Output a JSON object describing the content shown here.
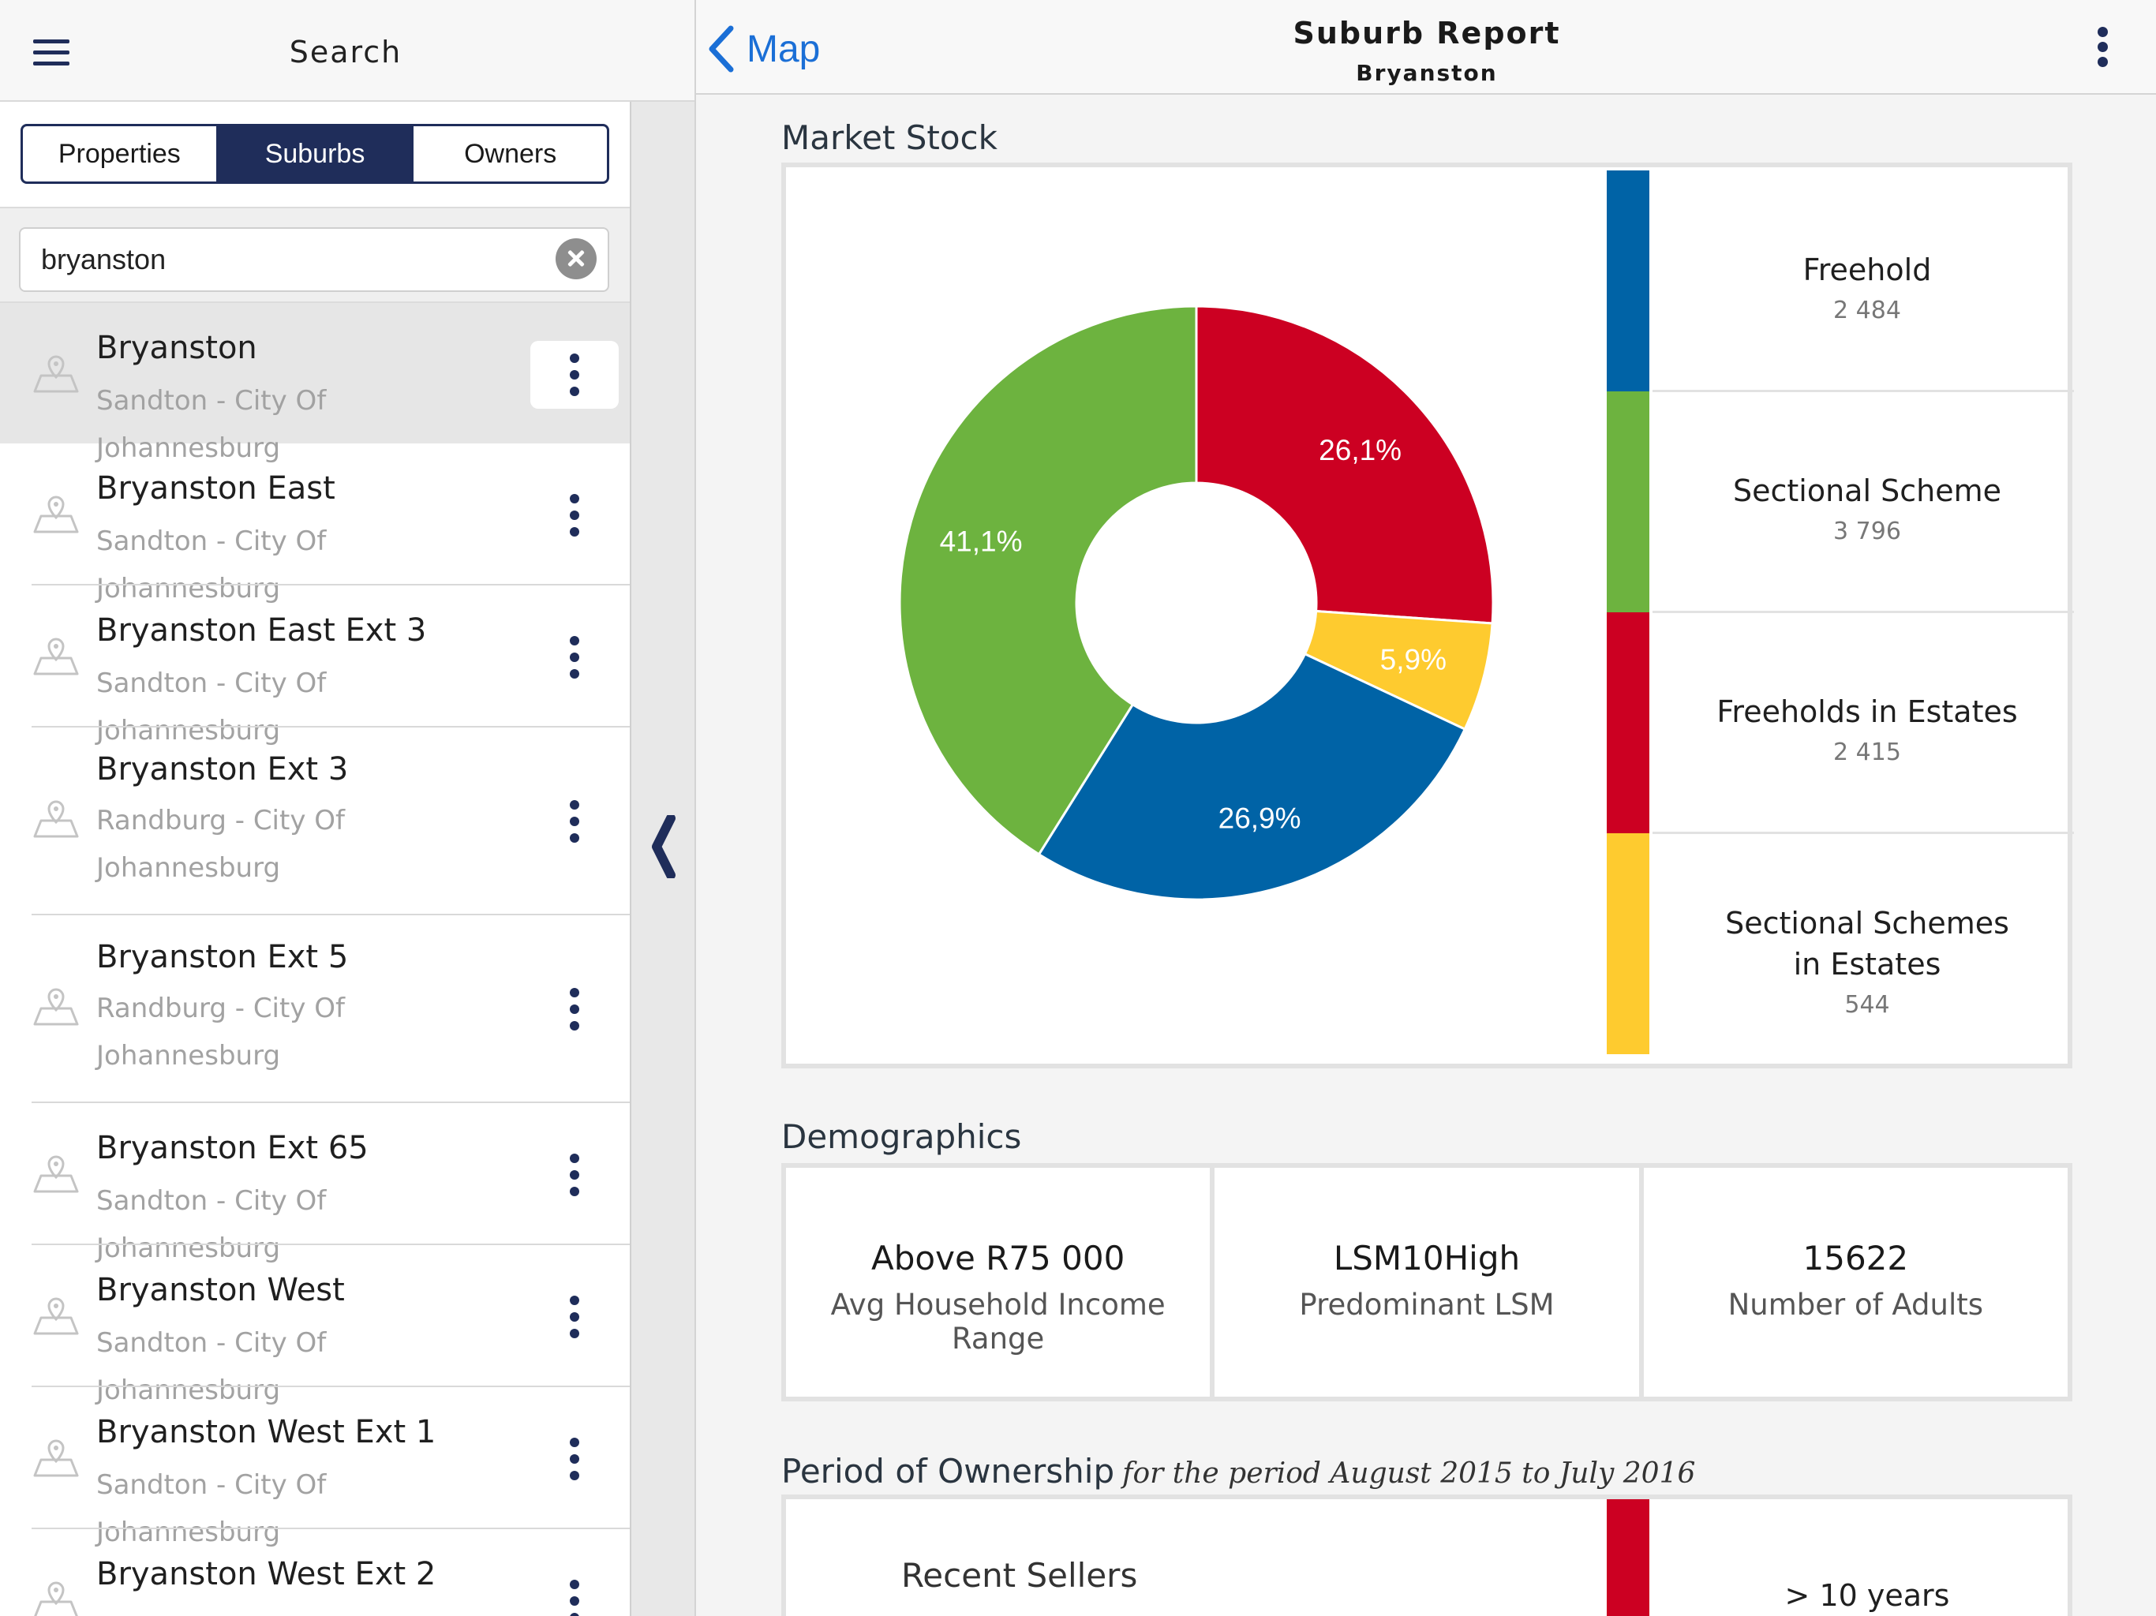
{
  "sidebar": {
    "title": "Search",
    "tabs": [
      {
        "label": "Properties",
        "active": false
      },
      {
        "label": "Suburbs",
        "active": true
      },
      {
        "label": "Owners",
        "active": false
      }
    ],
    "search": {
      "value": "bryanston"
    },
    "results": [
      {
        "title": "Bryanston",
        "subtitle": "Sandton - City Of Johannesburg",
        "selected": true
      },
      {
        "title": "Bryanston East",
        "subtitle": "Sandton - City Of Johannesburg"
      },
      {
        "title": "Bryanston East Ext 3",
        "subtitle": "Sandton - City Of Johannesburg"
      },
      {
        "title": "Bryanston Ext 3",
        "subtitle": "Randburg - City Of Johannesburg"
      },
      {
        "title": "Bryanston Ext 5",
        "subtitle": "Randburg - City Of Johannesburg"
      },
      {
        "title": "Bryanston Ext 65",
        "subtitle": "Sandton - City Of Johannesburg"
      },
      {
        "title": "Bryanston West",
        "subtitle": "Sandton - City Of Johannesburg"
      },
      {
        "title": "Bryanston West Ext 1",
        "subtitle": "Sandton - City Of Johannesburg"
      },
      {
        "title": "Bryanston West Ext 2",
        "subtitle": ""
      }
    ]
  },
  "nav": {
    "back_label": "Map",
    "title": "Suburb Report",
    "subtitle": "Bryanston"
  },
  "market_stock": {
    "title": "Market Stock",
    "legend": [
      {
        "name": "Freehold",
        "value": "2 484",
        "color": "#0063a6"
      },
      {
        "name": "Sectional Scheme",
        "value": "3 796",
        "color": "#6db33f"
      },
      {
        "name": "Freeholds in Estates",
        "value": "2 415",
        "color": "#cc0022"
      },
      {
        "name": "Sectional Schemes in Estates",
        "value": "544",
        "color": "#fecb2f"
      }
    ]
  },
  "chart_data": {
    "type": "pie",
    "title": "Market Stock",
    "categories": [
      "Freeholds in Estates",
      "Sectional Schemes in Estates",
      "Freehold",
      "Sectional Scheme"
    ],
    "values": [
      26.1,
      5.9,
      26.9,
      41.1
    ],
    "labels": [
      "26,1%",
      "5,9%",
      "26,9%",
      "41,1%"
    ],
    "colors": [
      "#cc0022",
      "#fecb2f",
      "#0063a6",
      "#6db33f"
    ],
    "counts": [
      2415,
      544,
      2484,
      3796
    ],
    "donut": true
  },
  "demographics": {
    "title": "Demographics",
    "stats": [
      {
        "value": "Above R75 000",
        "label": "Avg Household Income Range"
      },
      {
        "value": "LSM10High",
        "label": "Predominant LSM"
      },
      {
        "value": "15622",
        "label": "Number of Adults"
      }
    ]
  },
  "ownership": {
    "title": "Period of Ownership",
    "subtitle": "for the period August 2015 to July 2016",
    "recent_sellers": "Recent Sellers",
    "first_bucket": "> 10 years",
    "first_bucket_color": "#cc0022"
  }
}
